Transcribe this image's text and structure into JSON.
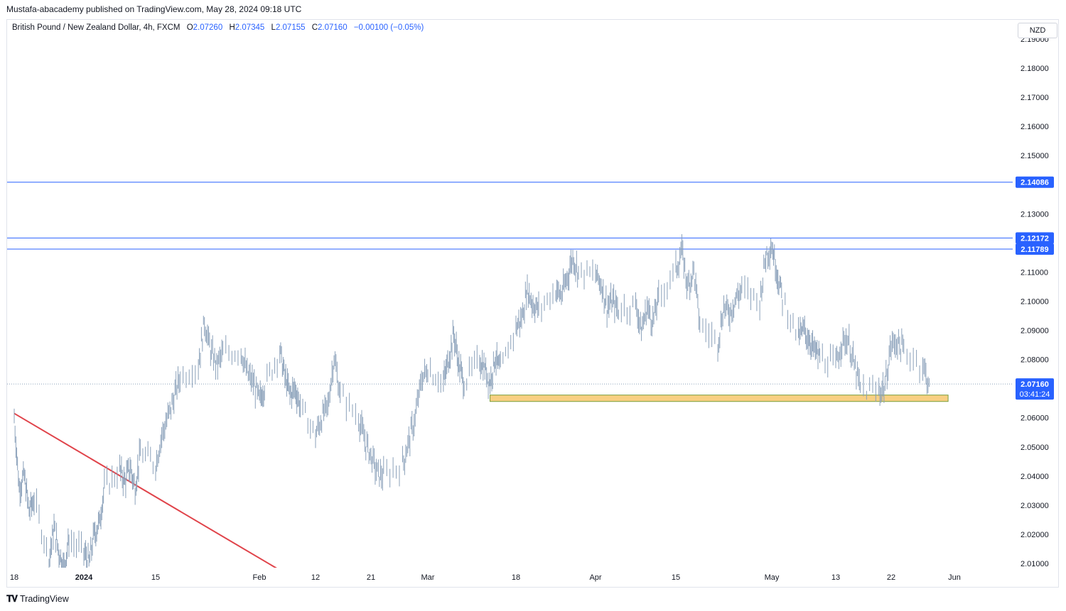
{
  "header": {
    "published": "Mustafa-abacademy published on TradingView.com, May 28, 2024 09:18 UTC"
  },
  "legend": {
    "symbol": "British Pound / New Zealand Dollar, 4h, FXCM",
    "o_label": "O",
    "o_value": "2.07260",
    "h_label": "H",
    "h_value": "2.07345",
    "l_label": "L",
    "l_value": "2.07155",
    "c_label": "C",
    "c_value": "2.07160",
    "change": "−0.00100 (−0.05%)"
  },
  "currency_button": "NZD",
  "footer": {
    "brand": "TradingView",
    "logo": "tradingview-logo-icon"
  },
  "colors": {
    "candle": "#8ba1ba",
    "hline": "#2962ff",
    "trendline": "#e0434a",
    "zone_fill": "#f8cf82",
    "zone_border": "#7a9e3a",
    "price_tag": "#2962ff"
  },
  "chart_data": {
    "type": "line",
    "title": "British Pound / New Zealand Dollar, 4h, FXCM",
    "xlabel": "",
    "ylabel": "",
    "ylim": [
      2.0075,
      2.1915
    ],
    "y_ticks": [
      "2.01000",
      "2.02000",
      "2.03000",
      "2.04000",
      "2.05000",
      "2.06000",
      "2.07000",
      "2.08000",
      "2.09000",
      "2.10000",
      "2.11000",
      "2.12000",
      "2.13000",
      "2.14000",
      "2.15000",
      "2.16000",
      "2.17000",
      "2.18000",
      "2.19000"
    ],
    "x_ticks": [
      {
        "label": "18",
        "date": "2023-12-18"
      },
      {
        "label": "2024",
        "date": "2024-01-01",
        "bold": true
      },
      {
        "label": "15",
        "date": "2024-01-15"
      },
      {
        "label": "Feb",
        "date": "2024-02-01"
      },
      {
        "label": "12",
        "date": "2024-02-12"
      },
      {
        "label": "21",
        "date": "2024-02-21"
      },
      {
        "label": "Mar",
        "date": "2024-03-01"
      },
      {
        "label": "18",
        "date": "2024-03-18"
      },
      {
        "label": "Apr",
        "date": "2024-04-01"
      },
      {
        "label": "15",
        "date": "2024-04-15"
      },
      {
        "label": "May",
        "date": "2024-05-01"
      },
      {
        "label": "13",
        "date": "2024-05-13"
      },
      {
        "label": "22",
        "date": "2024-05-22"
      },
      {
        "label": "Jun",
        "date": "2024-06-01"
      }
    ],
    "price_path": [
      [
        "2023-12-18",
        2.06
      ],
      [
        "2023-12-19",
        2.036
      ],
      [
        "2023-12-20",
        2.04
      ],
      [
        "2023-12-21",
        2.028
      ],
      [
        "2023-12-22",
        2.032
      ],
      [
        "2023-12-25",
        2.012
      ],
      [
        "2023-12-26",
        2.022
      ],
      [
        "2023-12-27",
        2.014
      ],
      [
        "2023-12-28",
        2.009
      ],
      [
        "2023-12-29",
        2.018
      ],
      [
        "2024-01-01",
        2.014
      ],
      [
        "2024-01-02",
        2.01
      ],
      [
        "2024-01-03",
        2.02
      ],
      [
        "2024-01-04",
        2.024
      ],
      [
        "2024-01-05",
        2.036
      ],
      [
        "2024-01-08",
        2.042
      ],
      [
        "2024-01-09",
        2.038
      ],
      [
        "2024-01-10",
        2.043
      ],
      [
        "2024-01-11",
        2.036
      ],
      [
        "2024-01-12",
        2.048
      ],
      [
        "2024-01-15",
        2.044
      ],
      [
        "2024-01-16",
        2.054
      ],
      [
        "2024-01-17",
        2.06
      ],
      [
        "2024-01-18",
        2.067
      ],
      [
        "2024-01-19",
        2.074
      ],
      [
        "2024-01-22",
        2.078
      ],
      [
        "2024-01-23",
        2.093
      ],
      [
        "2024-01-24",
        2.083
      ],
      [
        "2024-01-25",
        2.078
      ],
      [
        "2024-01-26",
        2.082
      ],
      [
        "2024-01-29",
        2.083
      ],
      [
        "2024-01-30",
        2.075
      ],
      [
        "2024-01-31",
        2.072
      ],
      [
        "2024-02-01",
        2.066
      ],
      [
        "2024-02-02",
        2.071
      ],
      [
        "2024-02-05",
        2.083
      ],
      [
        "2024-02-06",
        2.074
      ],
      [
        "2024-02-07",
        2.068
      ],
      [
        "2024-02-08",
        2.07
      ],
      [
        "2024-02-09",
        2.064
      ],
      [
        "2024-02-12",
        2.054
      ],
      [
        "2024-02-13",
        2.06
      ],
      [
        "2024-02-14",
        2.064
      ],
      [
        "2024-02-15",
        2.081
      ],
      [
        "2024-02-16",
        2.068
      ],
      [
        "2024-02-19",
        2.06
      ],
      [
        "2024-02-20",
        2.052
      ],
      [
        "2024-02-21",
        2.047
      ],
      [
        "2024-02-22",
        2.041
      ],
      [
        "2024-02-23",
        2.04
      ],
      [
        "2024-02-26",
        2.044
      ],
      [
        "2024-02-27",
        2.052
      ],
      [
        "2024-02-28",
        2.06
      ],
      [
        "2024-02-29",
        2.073
      ],
      [
        "2024-03-01",
        2.077
      ],
      [
        "2024-03-04",
        2.072
      ],
      [
        "2024-03-05",
        2.08
      ],
      [
        "2024-03-06",
        2.089
      ],
      [
        "2024-03-07",
        2.078
      ],
      [
        "2024-03-08",
        2.072
      ],
      [
        "2024-03-11",
        2.08
      ],
      [
        "2024-03-12",
        2.077
      ],
      [
        "2024-03-13",
        2.072
      ],
      [
        "2024-03-14",
        2.081
      ],
      [
        "2024-03-15",
        2.076
      ],
      [
        "2024-03-18",
        2.091
      ],
      [
        "2024-03-19",
        2.094
      ],
      [
        "2024-03-20",
        2.104
      ],
      [
        "2024-03-21",
        2.099
      ],
      [
        "2024-03-22",
        2.097
      ],
      [
        "2024-03-25",
        2.104
      ],
      [
        "2024-03-26",
        2.102
      ],
      [
        "2024-03-27",
        2.108
      ],
      [
        "2024-03-28",
        2.115
      ],
      [
        "2024-03-29",
        2.11
      ],
      [
        "2024-04-01",
        2.109
      ],
      [
        "2024-04-02",
        2.106
      ],
      [
        "2024-04-03",
        2.098
      ],
      [
        "2024-04-04",
        2.1
      ],
      [
        "2024-04-05",
        2.097
      ],
      [
        "2024-04-08",
        2.099
      ],
      [
        "2024-04-09",
        2.09
      ],
      [
        "2024-04-10",
        2.098
      ],
      [
        "2024-04-11",
        2.093
      ],
      [
        "2024-04-12",
        2.101
      ],
      [
        "2024-04-15",
        2.111
      ],
      [
        "2024-04-16",
        2.117
      ],
      [
        "2024-04-17",
        2.105
      ],
      [
        "2024-04-18",
        2.111
      ],
      [
        "2024-04-19",
        2.092
      ],
      [
        "2024-04-22",
        2.086
      ],
      [
        "2024-04-23",
        2.098
      ],
      [
        "2024-04-24",
        2.096
      ],
      [
        "2024-04-25",
        2.101
      ],
      [
        "2024-04-26",
        2.104
      ],
      [
        "2024-04-29",
        2.1
      ],
      [
        "2024-04-30",
        2.116
      ],
      [
        "2024-05-01",
        2.119
      ],
      [
        "2024-05-02",
        2.11
      ],
      [
        "2024-05-03",
        2.101
      ],
      [
        "2024-05-06",
        2.088
      ],
      [
        "2024-05-07",
        2.09
      ],
      [
        "2024-05-08",
        2.087
      ],
      [
        "2024-05-09",
        2.083
      ],
      [
        "2024-05-10",
        2.081
      ],
      [
        "2024-05-13",
        2.078
      ],
      [
        "2024-05-14",
        2.086
      ],
      [
        "2024-05-15",
        2.087
      ],
      [
        "2024-05-16",
        2.078
      ],
      [
        "2024-05-17",
        2.07
      ],
      [
        "2024-05-20",
        2.069
      ],
      [
        "2024-05-21",
        2.071
      ],
      [
        "2024-05-22",
        2.085
      ],
      [
        "2024-05-23",
        2.086
      ],
      [
        "2024-05-24",
        2.083
      ],
      [
        "2024-05-27",
        2.078
      ],
      [
        "2024-05-28",
        2.0716
      ]
    ],
    "horizontal_lines": [
      {
        "label": "2.14086",
        "value": 2.14086
      },
      {
        "label": "2.12172",
        "value": 2.12172
      },
      {
        "label": "2.11789",
        "value": 2.11789
      }
    ],
    "current_price": {
      "label": "2.07160",
      "value": 2.0716,
      "countdown": "03:41:24"
    },
    "support_zone": {
      "from": "2024-03-13",
      "to": "2024-05-31",
      "low": 2.0656,
      "high": 2.0678
    },
    "trendline": {
      "start": [
        "2023-12-18",
        2.0615
      ],
      "end": [
        "2024-02-05",
        2.0077
      ]
    }
  }
}
